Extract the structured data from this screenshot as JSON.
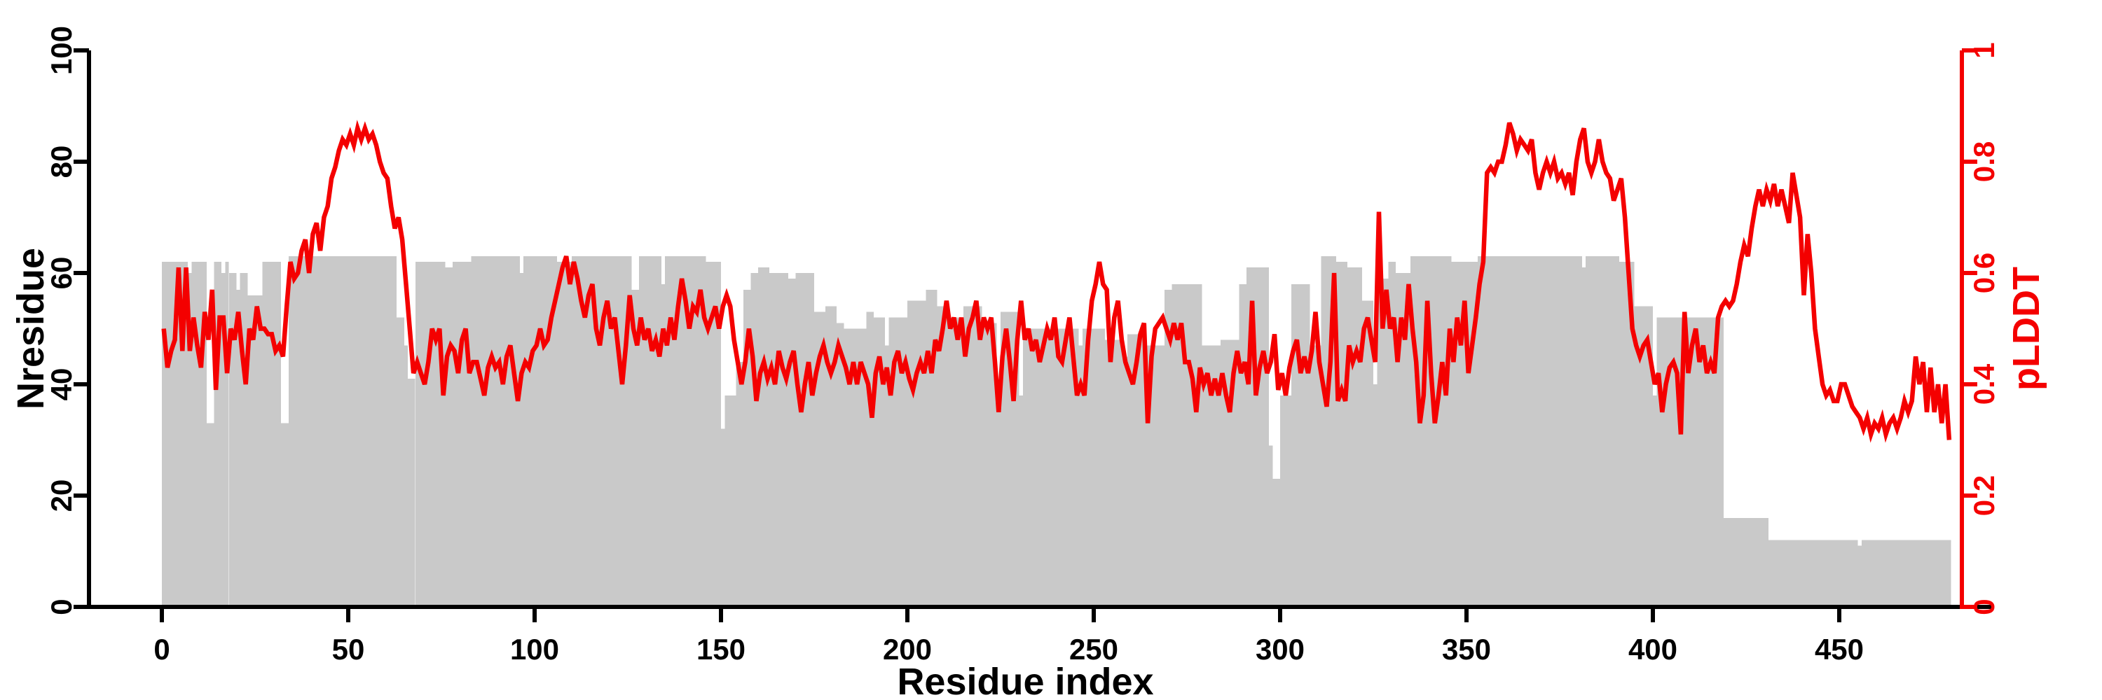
{
  "chart_data": {
    "type": "bar",
    "title": "",
    "xlabel": "Residue index",
    "ylabel_left": "Nresidue",
    "ylabel_right": "pLDDT",
    "legend": "none",
    "grid": false,
    "bar_color": "#c9c9c9",
    "line_color": "#f40000",
    "axis_color": "#000000",
    "right_axis_color": "#f40000",
    "xlim": [
      0,
      480
    ],
    "ylim_left": [
      0,
      100
    ],
    "ylim_right": [
      0,
      1
    ],
    "x_ticks": [
      0,
      50,
      100,
      150,
      200,
      250,
      300,
      350,
      400,
      450
    ],
    "x_tick_labels": [
      "0",
      "50",
      "100",
      "150",
      "200",
      "250",
      "300",
      "350",
      "400",
      "450"
    ],
    "y_ticks_left": [
      0,
      20,
      40,
      60,
      80,
      100
    ],
    "y_tick_labels_left": [
      "0",
      "20",
      "40",
      "60",
      "80",
      "100"
    ],
    "y_ticks_right": [
      0,
      0.2,
      0.4,
      0.6,
      0.8,
      1
    ],
    "y_tick_labels_right": [
      "0",
      "0.2",
      "0.4",
      "0.6",
      "0.8",
      "1"
    ],
    "series": [
      {
        "name": "Nresidue",
        "type": "bar",
        "note": "segments are [startResidue, endResidue, height] on left axis",
        "segments": [
          [
            0,
            6,
            62
          ],
          [
            7,
            7,
            60
          ],
          [
            8,
            11,
            62
          ],
          [
            12,
            13,
            33
          ],
          [
            14,
            15,
            62
          ],
          [
            16,
            16,
            60
          ],
          [
            17,
            17,
            62
          ],
          [
            18,
            19,
            60
          ],
          [
            20,
            20,
            57
          ],
          [
            21,
            22,
            60
          ],
          [
            23,
            26,
            56
          ],
          [
            27,
            31,
            62
          ],
          [
            32,
            33,
            33
          ],
          [
            34,
            62,
            63
          ],
          [
            63,
            64,
            52
          ],
          [
            65,
            65,
            47
          ],
          [
            66,
            67,
            41
          ],
          [
            68,
            75,
            62
          ],
          [
            76,
            77,
            61
          ],
          [
            78,
            82,
            62
          ],
          [
            83,
            95,
            63
          ],
          [
            96,
            96,
            60
          ],
          [
            97,
            105,
            63
          ],
          [
            106,
            109,
            62
          ],
          [
            110,
            125,
            63
          ],
          [
            126,
            127,
            57
          ],
          [
            128,
            133,
            63
          ],
          [
            134,
            134,
            58
          ],
          [
            135,
            145,
            63
          ],
          [
            146,
            149,
            62
          ],
          [
            150,
            150,
            32
          ],
          [
            151,
            153,
            38
          ],
          [
            154,
            155,
            44
          ],
          [
            156,
            157,
            57
          ],
          [
            158,
            159,
            60
          ],
          [
            160,
            162,
            61
          ],
          [
            163,
            167,
            60
          ],
          [
            168,
            169,
            59
          ],
          [
            170,
            174,
            60
          ],
          [
            175,
            177,
            53
          ],
          [
            178,
            180,
            54
          ],
          [
            181,
            182,
            51
          ],
          [
            183,
            188,
            50
          ],
          [
            189,
            190,
            53
          ],
          [
            191,
            193,
            52
          ],
          [
            194,
            194,
            47
          ],
          [
            195,
            199,
            52
          ],
          [
            200,
            204,
            55
          ],
          [
            205,
            207,
            57
          ],
          [
            208,
            209,
            54
          ],
          [
            210,
            214,
            52
          ],
          [
            215,
            219,
            54
          ],
          [
            220,
            223,
            51
          ],
          [
            224,
            224,
            37
          ],
          [
            225,
            229,
            53
          ],
          [
            230,
            230,
            38
          ],
          [
            231,
            245,
            50
          ],
          [
            246,
            246,
            47
          ],
          [
            247,
            252,
            50
          ],
          [
            253,
            257,
            48
          ],
          [
            258,
            258,
            45
          ],
          [
            259,
            263,
            49
          ],
          [
            264,
            268,
            47
          ],
          [
            269,
            270,
            57
          ],
          [
            271,
            278,
            58
          ],
          [
            279,
            283,
            47
          ],
          [
            284,
            288,
            48
          ],
          [
            289,
            290,
            58
          ],
          [
            291,
            296,
            61
          ],
          [
            297,
            297,
            29
          ],
          [
            298,
            299,
            23
          ],
          [
            300,
            302,
            38
          ],
          [
            303,
            307,
            58
          ],
          [
            308,
            310,
            47
          ],
          [
            311,
            314,
            63
          ],
          [
            315,
            317,
            62
          ],
          [
            318,
            321,
            61
          ],
          [
            322,
            324,
            55
          ],
          [
            325,
            325,
            40
          ],
          [
            326,
            328,
            59
          ],
          [
            329,
            330,
            62
          ],
          [
            331,
            334,
            60
          ],
          [
            335,
            345,
            63
          ],
          [
            346,
            352,
            62
          ],
          [
            353,
            380,
            63
          ],
          [
            381,
            381,
            61
          ],
          [
            382,
            390,
            63
          ],
          [
            391,
            394,
            62
          ],
          [
            395,
            399,
            54
          ],
          [
            400,
            400,
            38
          ],
          [
            401,
            404,
            52
          ],
          [
            405,
            418,
            52
          ],
          [
            419,
            430,
            16
          ],
          [
            431,
            454,
            12
          ],
          [
            455,
            455,
            11
          ],
          [
            456,
            479,
            12
          ]
        ]
      },
      {
        "name": "pLDDT",
        "type": "line",
        "note": "one value per residue 0..479 on right axis",
        "values": [
          0.5,
          0.43,
          0.46,
          0.48,
          0.61,
          0.46,
          0.61,
          0.46,
          0.52,
          0.47,
          0.43,
          0.53,
          0.48,
          0.57,
          0.39,
          0.52,
          0.52,
          0.42,
          0.5,
          0.48,
          0.53,
          0.46,
          0.4,
          0.5,
          0.48,
          0.54,
          0.5,
          0.5,
          0.49,
          0.49,
          0.46,
          0.47,
          0.45,
          0.54,
          0.62,
          0.59,
          0.6,
          0.64,
          0.66,
          0.6,
          0.67,
          0.69,
          0.64,
          0.7,
          0.72,
          0.77,
          0.79,
          0.82,
          0.84,
          0.83,
          0.85,
          0.83,
          0.86,
          0.84,
          0.86,
          0.84,
          0.85,
          0.83,
          0.8,
          0.78,
          0.77,
          0.72,
          0.68,
          0.7,
          0.66,
          0.58,
          0.5,
          0.42,
          0.44,
          0.42,
          0.4,
          0.44,
          0.5,
          0.48,
          0.5,
          0.38,
          0.45,
          0.47,
          0.46,
          0.42,
          0.48,
          0.5,
          0.42,
          0.44,
          0.44,
          0.41,
          0.38,
          0.43,
          0.45,
          0.43,
          0.44,
          0.4,
          0.45,
          0.47,
          0.42,
          0.37,
          0.42,
          0.44,
          0.43,
          0.46,
          0.47,
          0.5,
          0.47,
          0.48,
          0.52,
          0.55,
          0.58,
          0.61,
          0.63,
          0.58,
          0.62,
          0.59,
          0.55,
          0.52,
          0.56,
          0.58,
          0.5,
          0.47,
          0.52,
          0.55,
          0.5,
          0.52,
          0.46,
          0.4,
          0.47,
          0.56,
          0.5,
          0.47,
          0.52,
          0.48,
          0.5,
          0.46,
          0.48,
          0.45,
          0.5,
          0.47,
          0.52,
          0.48,
          0.54,
          0.59,
          0.55,
          0.5,
          0.54,
          0.53,
          0.57,
          0.52,
          0.5,
          0.52,
          0.54,
          0.5,
          0.54,
          0.56,
          0.54,
          0.48,
          0.44,
          0.4,
          0.44,
          0.5,
          0.45,
          0.37,
          0.42,
          0.44,
          0.41,
          0.43,
          0.4,
          0.46,
          0.43,
          0.41,
          0.44,
          0.46,
          0.4,
          0.35,
          0.4,
          0.44,
          0.38,
          0.42,
          0.45,
          0.47,
          0.44,
          0.42,
          0.44,
          0.47,
          0.45,
          0.43,
          0.4,
          0.44,
          0.4,
          0.44,
          0.42,
          0.4,
          0.34,
          0.42,
          0.45,
          0.4,
          0.43,
          0.38,
          0.44,
          0.46,
          0.42,
          0.44,
          0.41,
          0.39,
          0.42,
          0.44,
          0.42,
          0.46,
          0.42,
          0.48,
          0.46,
          0.5,
          0.55,
          0.5,
          0.52,
          0.48,
          0.52,
          0.45,
          0.5,
          0.52,
          0.55,
          0.48,
          0.52,
          0.5,
          0.52,
          0.44,
          0.35,
          0.45,
          0.5,
          0.44,
          0.37,
          0.48,
          0.55,
          0.48,
          0.5,
          0.46,
          0.48,
          0.44,
          0.47,
          0.5,
          0.48,
          0.52,
          0.45,
          0.44,
          0.48,
          0.52,
          0.45,
          0.38,
          0.4,
          0.38,
          0.48,
          0.55,
          0.58,
          0.62,
          0.58,
          0.57,
          0.44,
          0.52,
          0.55,
          0.48,
          0.44,
          0.42,
          0.4,
          0.44,
          0.49,
          0.51,
          0.33,
          0.45,
          0.5,
          0.51,
          0.52,
          0.5,
          0.48,
          0.51,
          0.48,
          0.51,
          0.44,
          0.44,
          0.41,
          0.35,
          0.43,
          0.4,
          0.42,
          0.38,
          0.41,
          0.38,
          0.42,
          0.38,
          0.35,
          0.42,
          0.46,
          0.42,
          0.44,
          0.4,
          0.55,
          0.38,
          0.43,
          0.46,
          0.42,
          0.44,
          0.49,
          0.39,
          0.42,
          0.38,
          0.43,
          0.46,
          0.48,
          0.42,
          0.45,
          0.42,
          0.46,
          0.53,
          0.44,
          0.4,
          0.36,
          0.44,
          0.6,
          0.37,
          0.39,
          0.37,
          0.47,
          0.44,
          0.46,
          0.44,
          0.5,
          0.52,
          0.48,
          0.44,
          0.71,
          0.5,
          0.57,
          0.5,
          0.52,
          0.44,
          0.52,
          0.48,
          0.58,
          0.5,
          0.44,
          0.33,
          0.38,
          0.55,
          0.42,
          0.33,
          0.38,
          0.44,
          0.38,
          0.5,
          0.44,
          0.52,
          0.47,
          0.55,
          0.42,
          0.47,
          0.52,
          0.58,
          0.62,
          0.78,
          0.79,
          0.78,
          0.8,
          0.8,
          0.83,
          0.87,
          0.85,
          0.82,
          0.84,
          0.83,
          0.82,
          0.84,
          0.78,
          0.75,
          0.78,
          0.8,
          0.78,
          0.8,
          0.77,
          0.78,
          0.76,
          0.78,
          0.74,
          0.8,
          0.84,
          0.86,
          0.8,
          0.78,
          0.8,
          0.84,
          0.8,
          0.78,
          0.77,
          0.73,
          0.75,
          0.77,
          0.7,
          0.6,
          0.5,
          0.47,
          0.45,
          0.47,
          0.48,
          0.44,
          0.4,
          0.42,
          0.35,
          0.4,
          0.43,
          0.44,
          0.42,
          0.31,
          0.53,
          0.42,
          0.47,
          0.5,
          0.44,
          0.47,
          0.42,
          0.44,
          0.42,
          0.52,
          0.54,
          0.55,
          0.54,
          0.55,
          0.58,
          0.62,
          0.65,
          0.63,
          0.68,
          0.72,
          0.75,
          0.72,
          0.75,
          0.73,
          0.76,
          0.72,
          0.75,
          0.72,
          0.69,
          0.78,
          0.74,
          0.7,
          0.56,
          0.67,
          0.6,
          0.5,
          0.45,
          0.4,
          0.38,
          0.39,
          0.37,
          0.37,
          0.4,
          0.4,
          0.38,
          0.36,
          0.35,
          0.34,
          0.32,
          0.34,
          0.31,
          0.33,
          0.32,
          0.34,
          0.31,
          0.33,
          0.34,
          0.32,
          0.34,
          0.37,
          0.35,
          0.37,
          0.45,
          0.4,
          0.44,
          0.35,
          0.43,
          0.35,
          0.4,
          0.33,
          0.4,
          0.3
        ]
      }
    ]
  }
}
